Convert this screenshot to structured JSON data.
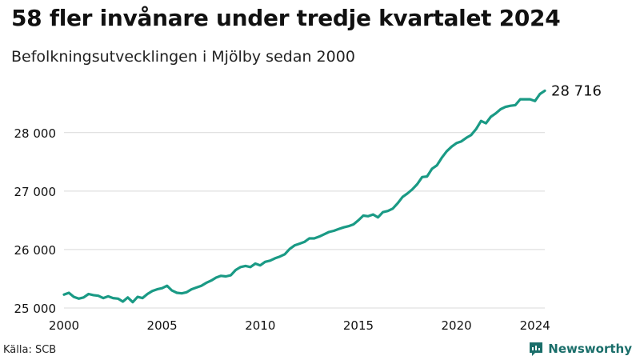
{
  "title": "58 fler invånare under tredje kvartalet 2024",
  "subtitle": "Befolkningsutvecklingen i Mjölby sedan 2000",
  "source": "Källa: SCB",
  "brand": {
    "name": "Newsworthy",
    "icon": "newsworthy-logo-icon"
  },
  "colors": {
    "line": "#1a9a85",
    "grid": "#d9d9d9",
    "text": "#111111",
    "brand": "#1a6e6a"
  },
  "chart_data": {
    "type": "line",
    "title": "58 fler invånare under tredje kvartalet 2024",
    "subtitle": "Befolkningsutvecklingen i Mjölby sedan 2000",
    "xlabel": "",
    "ylabel": "",
    "xlim": [
      2000,
      2024.5
    ],
    "ylim": [
      25000,
      28900
    ],
    "x_ticks": [
      2000,
      2005,
      2010,
      2015,
      2020,
      2024
    ],
    "y_ticks": [
      25000,
      26000,
      27000,
      28000
    ],
    "y_tick_labels": [
      "25 000",
      "26 000",
      "27 000",
      "28 000"
    ],
    "grid": "horizontal",
    "end_label": "28 716",
    "series": [
      {
        "x": [
          2000,
          2000.25,
          2000.5,
          2000.75,
          2001,
          2001.25,
          2001.5,
          2001.75,
          2002,
          2002.25,
          2002.5,
          2002.75,
          2003,
          2003.25,
          2003.5,
          2003.75,
          2004,
          2004.25,
          2004.5,
          2004.75,
          2005,
          2005.25,
          2005.5,
          2005.75,
          2006,
          2006.25,
          2006.5,
          2006.75,
          2007,
          2007.25,
          2007.5,
          2007.75,
          2008,
          2008.25,
          2008.5,
          2008.75,
          2009,
          2009.25,
          2009.5,
          2009.75,
          2010,
          2010.25,
          2010.5,
          2010.75,
          2011,
          2011.25,
          2011.5,
          2011.75,
          2012,
          2012.25,
          2012.5,
          2012.75,
          2013,
          2013.25,
          2013.5,
          2013.75,
          2014,
          2014.25,
          2014.5,
          2014.75,
          2015,
          2015.25,
          2015.5,
          2015.75,
          2016,
          2016.25,
          2016.5,
          2016.75,
          2017,
          2017.25,
          2017.5,
          2017.75,
          2018,
          2018.25,
          2018.5,
          2018.75,
          2019,
          2019.25,
          2019.5,
          2019.75,
          2020,
          2020.25,
          2020.5,
          2020.75,
          2021,
          2021.25,
          2021.5,
          2021.75,
          2022,
          2022.25,
          2022.5,
          2022.75,
          2023,
          2023.25,
          2023.5,
          2023.75,
          2024,
          2024.25,
          2024.5
        ],
        "values": [
          25230,
          25260,
          25190,
          25160,
          25180,
          25240,
          25220,
          25210,
          25170,
          25200,
          25170,
          25160,
          25110,
          25180,
          25100,
          25190,
          25170,
          25240,
          25290,
          25320,
          25340,
          25380,
          25300,
          25260,
          25250,
          25270,
          25320,
          25350,
          25380,
          25430,
          25470,
          25520,
          25550,
          25540,
          25560,
          25650,
          25700,
          25720,
          25700,
          25760,
          25730,
          25790,
          25810,
          25850,
          25880,
          25920,
          26010,
          26070,
          26100,
          26130,
          26190,
          26190,
          26220,
          26260,
          26300,
          26320,
          26350,
          26380,
          26400,
          26430,
          26500,
          26580,
          26570,
          26600,
          26550,
          26640,
          26660,
          26700,
          26790,
          26900,
          26960,
          27030,
          27120,
          27240,
          27250,
          27380,
          27440,
          27570,
          27680,
          27760,
          27820,
          27850,
          27910,
          27960,
          28060,
          28200,
          28160,
          28270,
          28330,
          28400,
          28440,
          28460,
          28470,
          28570,
          28570,
          28570,
          28540,
          28660,
          28716
        ]
      }
    ]
  }
}
